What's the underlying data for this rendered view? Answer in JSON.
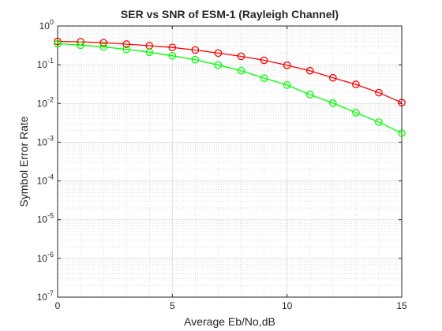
{
  "chart_data": {
    "type": "line",
    "title": "SER vs SNR of ESM-1 (Rayleigh Channel)",
    "xlabel": "Average Eb/No,dB",
    "ylabel": "Symbol Error Rate",
    "xlim": [
      0,
      15
    ],
    "ylim": [
      1e-07,
      1
    ],
    "yscale": "log",
    "grid": true,
    "legend": "none",
    "x": [
      0,
      1,
      2,
      3,
      4,
      5,
      6,
      7,
      8,
      9,
      10,
      11,
      12,
      13,
      14,
      15
    ],
    "x_ticks": [
      0,
      5,
      10,
      15
    ],
    "y_ticks": [
      -7,
      -6,
      -5,
      -4,
      -3,
      -2,
      -1,
      0
    ],
    "series": [
      {
        "color": "#ff0000",
        "marker": "circle",
        "values": [
          0.4,
          0.39,
          0.37,
          0.34,
          0.31,
          0.28,
          0.24,
          0.2,
          0.165,
          0.13,
          0.097,
          0.07,
          0.046,
          0.031,
          0.019,
          0.0105
        ]
      },
      {
        "color": "#00ff00",
        "marker": "circle",
        "values": [
          0.35,
          0.32,
          0.29,
          0.25,
          0.21,
          0.17,
          0.135,
          0.098,
          0.07,
          0.045,
          0.03,
          0.017,
          0.0102,
          0.0058,
          0.0033,
          0.0017
        ]
      }
    ]
  }
}
